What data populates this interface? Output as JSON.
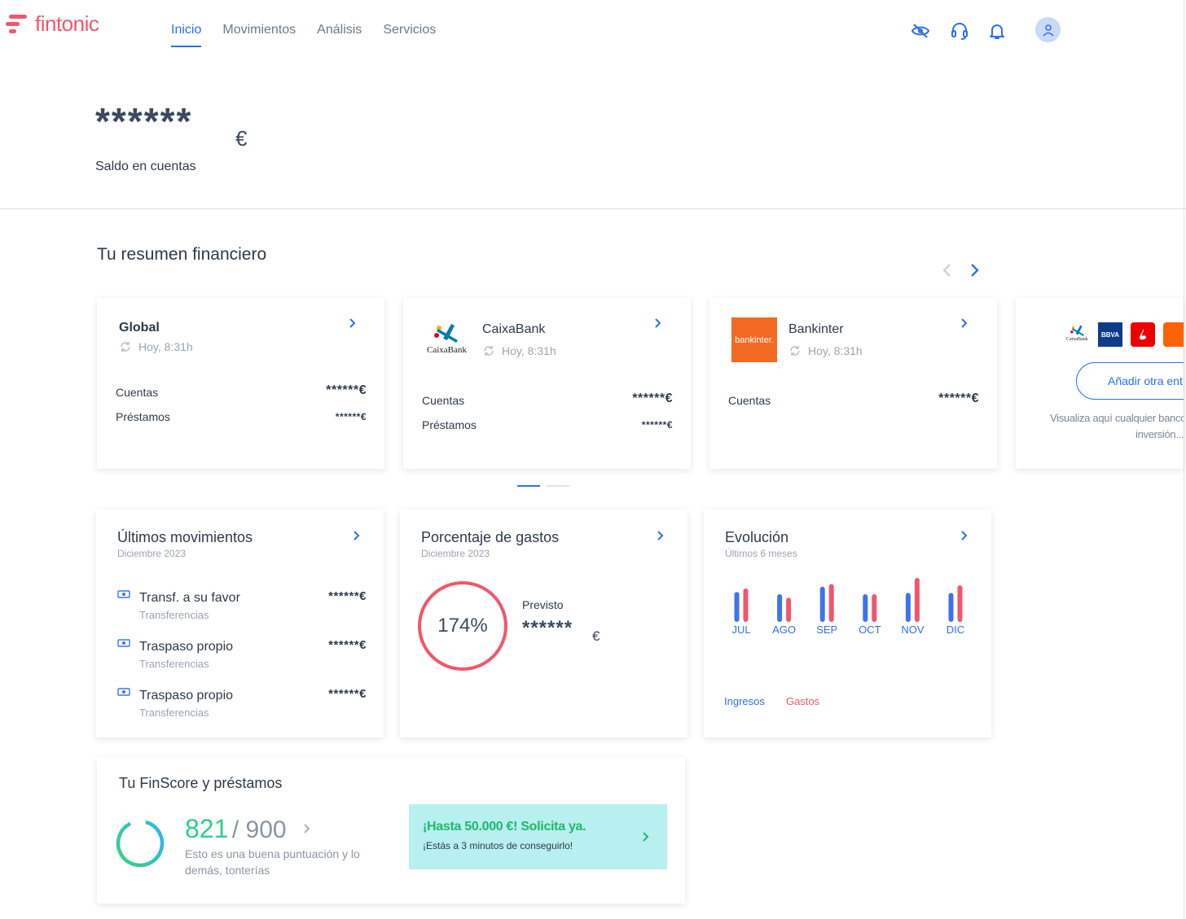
{
  "header": {
    "brand": "fintonic",
    "nav": [
      "Inicio",
      "Movimientos",
      "Análisis",
      "Servicios"
    ],
    "active_nav": "Inicio",
    "icons": [
      "eye-slash-icon",
      "headset-icon",
      "bell-icon",
      "user-icon"
    ]
  },
  "balance": {
    "value": "******",
    "currency": "€",
    "label": "Saldo en cuentas"
  },
  "summary": {
    "title": "Tu resumen financiero",
    "cards": [
      {
        "name": "Global",
        "time": "Hoy, 8:31h",
        "rows": [
          {
            "label": "Cuentas",
            "value": "******€"
          },
          {
            "label": "Préstamos",
            "value": "******€"
          }
        ]
      },
      {
        "name": "CaixaBank",
        "logo_text": "CaixaBank",
        "time": "Hoy, 8:31h",
        "rows": [
          {
            "label": "Cuentas",
            "value": "******€"
          },
          {
            "label": "Préstamos",
            "value": "******€"
          }
        ]
      },
      {
        "name": "Bankinter",
        "logo_text": "bankinter.",
        "time": "Hoy, 8:31h",
        "rows": [
          {
            "label": "Cuentas",
            "value": "******€"
          }
        ]
      }
    ],
    "add_card": {
      "button": "Añadir otra ent",
      "text_line1": "Visualiza aquí cualquier banco",
      "text_line2": "inversión...",
      "logos": [
        "CaixaBank",
        "BBVA"
      ]
    }
  },
  "movements": {
    "title": "Últimos movimientos",
    "subtitle": "Diciembre 2023",
    "items": [
      {
        "title": "Transf. a su favor",
        "category": "Transferencias",
        "amount": "******€"
      },
      {
        "title": "Traspaso propio",
        "category": "Transferencias",
        "amount": "******€"
      },
      {
        "title": "Traspaso propio",
        "category": "Transferencias",
        "amount": "******€"
      }
    ]
  },
  "spending": {
    "title": "Porcentaje de gastos",
    "subtitle": "Diciembre 2023",
    "percent": "174%",
    "forecast_label": "Previsto",
    "forecast_value": "******",
    "forecast_currency": "€"
  },
  "evolution": {
    "title": "Evolución",
    "subtitle": "Últimos 6 meses",
    "legend_income": "Ingresos",
    "legend_expense": "Gastos",
    "colors": {
      "income": "#3f73ee",
      "expense": "#f2566b"
    }
  },
  "chart_data": {
    "type": "bar",
    "categories": [
      "JUL",
      "AGO",
      "SEP",
      "OCT",
      "NOV",
      "DIC"
    ],
    "series": [
      {
        "name": "Ingresos",
        "values": [
          0.68,
          0.63,
          0.8,
          0.63,
          0.66,
          0.66
        ]
      },
      {
        "name": "Gastos",
        "values": [
          0.76,
          0.55,
          0.86,
          0.63,
          1.0,
          0.83
        ]
      }
    ]
  },
  "finscore": {
    "title": "Tu FinScore y préstamos",
    "score": "821",
    "max": "/ 900",
    "description_line1": "Esto es una buena puntuación y lo",
    "description_line2": "demás, tonterías",
    "promo_title": "¡Hasta 50.000 €! Solicita ya.",
    "promo_sub": "¡Estás a 3 minutos de conseguirlo!"
  }
}
